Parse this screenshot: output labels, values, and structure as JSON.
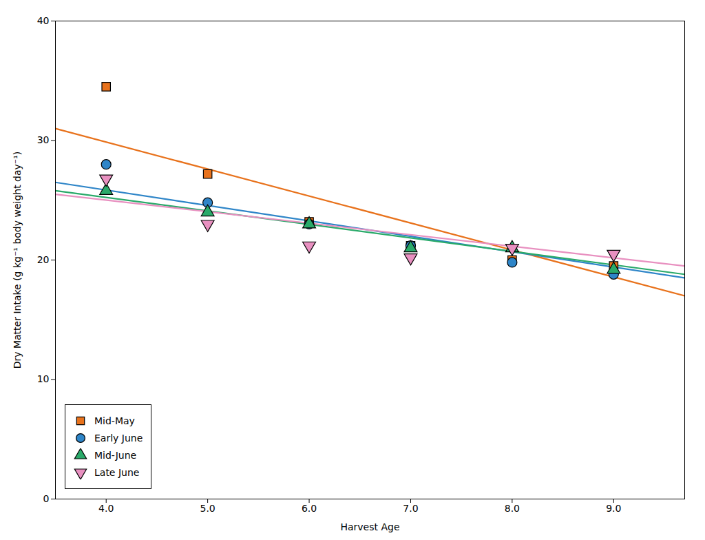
{
  "chart_data": {
    "type": "scatter",
    "xlabel": "Harvest Age",
    "ylabel": "Dry Matter Intake (g kg⁻¹ body weight day⁻¹)",
    "xlim": [
      3.5,
      9.7
    ],
    "ylim": [
      0,
      40
    ],
    "xticks": [
      4,
      5,
      6,
      7,
      8,
      9
    ],
    "yticks": [
      0,
      10,
      20,
      30,
      40
    ],
    "grid": false,
    "legend": "lower left",
    "series": [
      {
        "name": "Mid-May",
        "color": "#E8721C",
        "marker": "square",
        "x": [
          4,
          5,
          6,
          7,
          8,
          9
        ],
        "values": [
          34.5,
          27.2,
          23.2,
          21.2,
          20.0,
          19.5
        ],
        "line_x": [
          3.5,
          9.7
        ],
        "line_y": [
          31.0,
          17.0
        ]
      },
      {
        "name": "Early June",
        "color": "#2E85C8",
        "marker": "circle",
        "x": [
          4,
          5,
          6,
          7,
          8,
          9
        ],
        "values": [
          28.0,
          24.8,
          23.0,
          21.2,
          19.8,
          18.8
        ],
        "line_x": [
          3.5,
          9.7
        ],
        "line_y": [
          26.5,
          18.5
        ]
      },
      {
        "name": "Mid-June",
        "color": "#2AAA6A",
        "marker": "triangle-up",
        "x": [
          4,
          5,
          6,
          7,
          8,
          9
        ],
        "values": [
          25.8,
          24.0,
          23.0,
          21.0,
          21.0,
          19.2
        ],
        "line_x": [
          3.5,
          9.7
        ],
        "line_y": [
          25.8,
          18.8
        ]
      },
      {
        "name": "Late June",
        "color": "#E890C0",
        "marker": "triangle-down",
        "x": [
          4,
          5,
          6,
          7,
          8,
          9
        ],
        "values": [
          26.8,
          23.0,
          21.2,
          20.2,
          21.0,
          20.5
        ],
        "line_x": [
          3.5,
          9.7
        ],
        "line_y": [
          25.5,
          19.5
        ]
      }
    ]
  }
}
